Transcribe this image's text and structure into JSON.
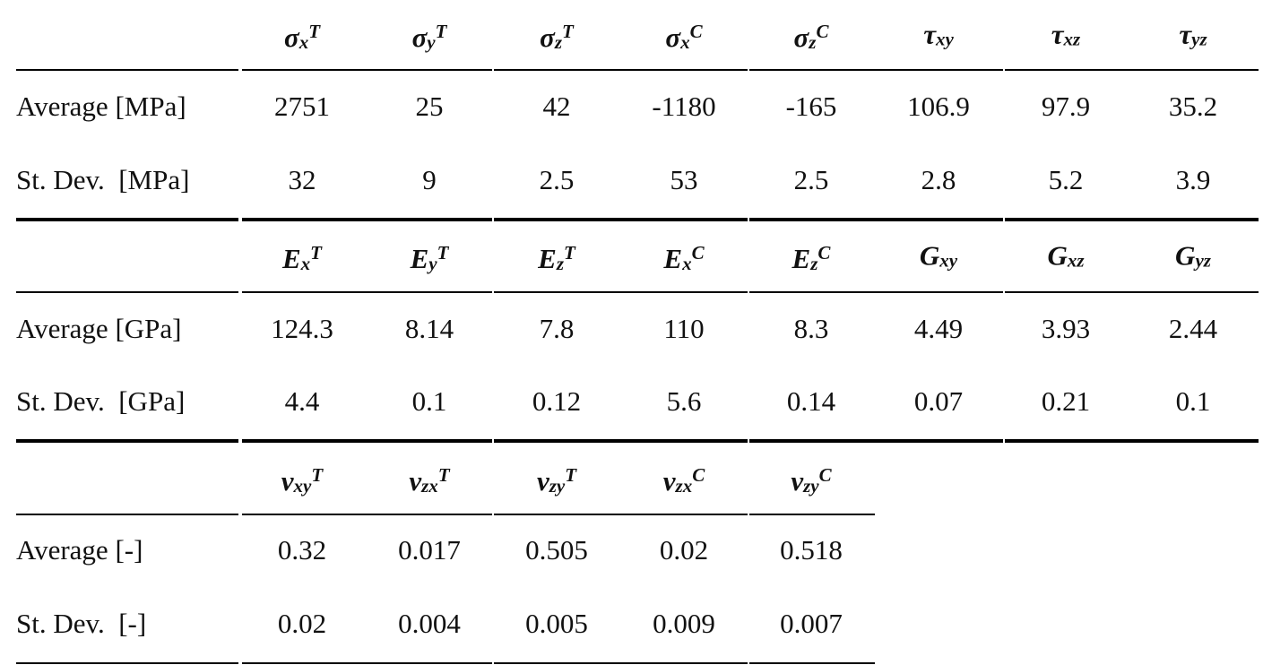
{
  "blocks": [
    {
      "header": [
        {
          "symbol": "σ",
          "sub": "x",
          "sup": "T"
        },
        {
          "symbol": "σ",
          "sub": "y",
          "sup": "T"
        },
        {
          "symbol": "σ",
          "sub": "z",
          "sup": "T"
        },
        {
          "symbol": "σ",
          "sub": "x",
          "sup": "C"
        },
        {
          "symbol": "σ",
          "sub": "z",
          "sup": "C"
        },
        {
          "symbol": "τ",
          "sub": "xy"
        },
        {
          "symbol": "τ",
          "sub": "xz"
        },
        {
          "symbol": "τ",
          "sub": "yz"
        }
      ],
      "rows": [
        {
          "label": "Average [MPa]",
          "values": [
            "2751",
            "25",
            "42",
            "-1180",
            "-165",
            "106.9",
            "97.9",
            "35.2"
          ]
        },
        {
          "label": "St. Dev.  [MPa]",
          "values": [
            "32",
            "9",
            "2.5",
            "53",
            "2.5",
            "2.8",
            "5.2",
            "3.9"
          ]
        }
      ]
    },
    {
      "header": [
        {
          "symbol": "E",
          "sub": "x",
          "sup": "T"
        },
        {
          "symbol": "E",
          "sub": "y",
          "sup": "T"
        },
        {
          "symbol": "E",
          "sub": "z",
          "sup": "T"
        },
        {
          "symbol": "E",
          "sub": "x",
          "sup": "C"
        },
        {
          "symbol": "E",
          "sub": "z",
          "sup": "C"
        },
        {
          "symbol": "G",
          "sub": "xy"
        },
        {
          "symbol": "G",
          "sub": "xz"
        },
        {
          "symbol": "G",
          "sub": "yz"
        }
      ],
      "rows": [
        {
          "label": "Average [GPa]",
          "values": [
            "124.3",
            "8.14",
            "7.8",
            "110",
            "8.3",
            "4.49",
            "3.93",
            "2.44"
          ]
        },
        {
          "label": "St. Dev.  [GPa]",
          "values": [
            "4.4",
            "0.1",
            "0.12",
            "5.6",
            "0.14",
            "0.07",
            "0.21",
            "0.1"
          ]
        }
      ]
    },
    {
      "header": [
        {
          "symbol": "ν",
          "sub": "xy",
          "sup": "T"
        },
        {
          "symbol": "ν",
          "sub": "zx",
          "sup": "T"
        },
        {
          "symbol": "ν",
          "sub": "zy",
          "sup": "T"
        },
        {
          "symbol": "ν",
          "sub": "zx",
          "sup": "C"
        },
        {
          "symbol": "ν",
          "sub": "zy",
          "sup": "C"
        }
      ],
      "rows": [
        {
          "label": "Average [-]",
          "values": [
            "0.32",
            "0.017",
            "0.505",
            "0.02",
            "0.518"
          ]
        },
        {
          "label": "St. Dev.  [-]",
          "values": [
            "0.02",
            "0.004",
            "0.005",
            "0.009",
            "0.007"
          ]
        }
      ]
    }
  ]
}
